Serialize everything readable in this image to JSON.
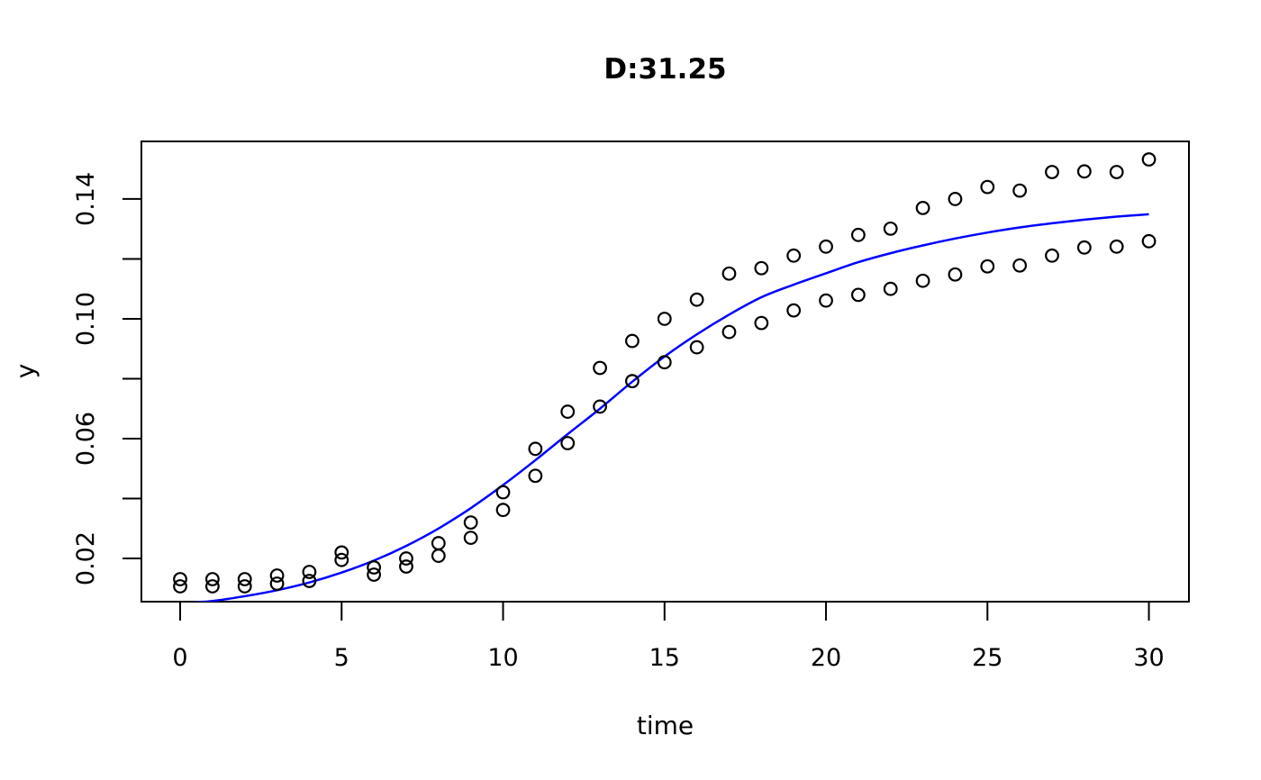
{
  "chart_data": {
    "type": "scatter",
    "title": "D:31.25",
    "xlabel": "time",
    "ylabel": "y",
    "x": [
      0,
      1,
      2,
      3,
      4,
      5,
      6,
      7,
      8,
      9,
      10,
      11,
      12,
      13,
      14,
      15,
      16,
      17,
      18,
      19,
      20,
      21,
      22,
      23,
      24,
      25,
      26,
      27,
      28,
      29,
      30
    ],
    "series": [
      {
        "name": "observed-upper",
        "marker": "open-circle",
        "color": "#000000",
        "values": [
          0.0131,
          0.0131,
          0.0131,
          0.0143,
          0.0155,
          0.022,
          0.017,
          0.02,
          0.0251,
          0.032,
          0.0421,
          0.0566,
          0.069,
          0.0836,
          0.0926,
          0.1,
          0.1064,
          0.1151,
          0.1169,
          0.1211,
          0.1241,
          0.128,
          0.1301,
          0.137,
          0.14,
          0.144,
          0.1428,
          0.149,
          0.1492,
          0.149,
          0.1532
        ]
      },
      {
        "name": "observed-lower",
        "marker": "open-circle",
        "color": "#000000",
        "values": [
          0.0107,
          0.0107,
          0.0107,
          0.0116,
          0.0125,
          0.0195,
          0.0146,
          0.0173,
          0.0209,
          0.0269,
          0.0362,
          0.0476,
          0.0585,
          0.0707,
          0.0792,
          0.0855,
          0.0905,
          0.0956,
          0.0986,
          0.1028,
          0.1061,
          0.108,
          0.11,
          0.1127,
          0.1148,
          0.1175,
          0.1178,
          0.1211,
          0.1238,
          0.1241,
          0.1259
        ]
      }
    ],
    "fit_curve": {
      "name": "model-fit-logistic",
      "color": "#0000ff",
      "x": [
        0,
        1,
        2,
        3,
        4,
        5,
        6,
        7,
        8,
        9,
        10,
        11,
        12,
        13,
        14,
        15,
        16,
        17,
        18,
        19,
        20,
        21,
        22,
        23,
        24,
        25,
        26,
        27,
        28,
        29,
        30
      ],
      "values": [
        0.005,
        0.0058,
        0.0074,
        0.0094,
        0.012,
        0.0153,
        0.0193,
        0.0242,
        0.03,
        0.0368,
        0.0445,
        0.0528,
        0.0615,
        0.07,
        0.079,
        0.0874,
        0.0948,
        0.1014,
        0.1072,
        0.1114,
        0.1152,
        0.1189,
        0.1219,
        0.1245,
        0.1268,
        0.1288,
        0.1305,
        0.1319,
        0.1331,
        0.1341,
        0.1349
      ]
    },
    "x_ticks": [
      0,
      5,
      10,
      15,
      20,
      25,
      30
    ],
    "x_tick_labels": [
      "0",
      "5",
      "10",
      "15",
      "20",
      "25",
      "30"
    ],
    "y_ticks": [
      0.02,
      0.04,
      0.06,
      0.08,
      0.1,
      0.12,
      0.14
    ],
    "y_labeled_ticks": [
      0.02,
      0.06,
      0.1,
      0.14
    ],
    "y_tick_labels": [
      "0.02",
      "0.06",
      "0.10",
      "0.14"
    ],
    "xlim": [
      -1.2,
      31.24
    ],
    "ylim": [
      0.00558,
      0.15922
    ],
    "grid": false,
    "legend": "none",
    "background": "#ffffff",
    "axis_color": "#000000"
  }
}
